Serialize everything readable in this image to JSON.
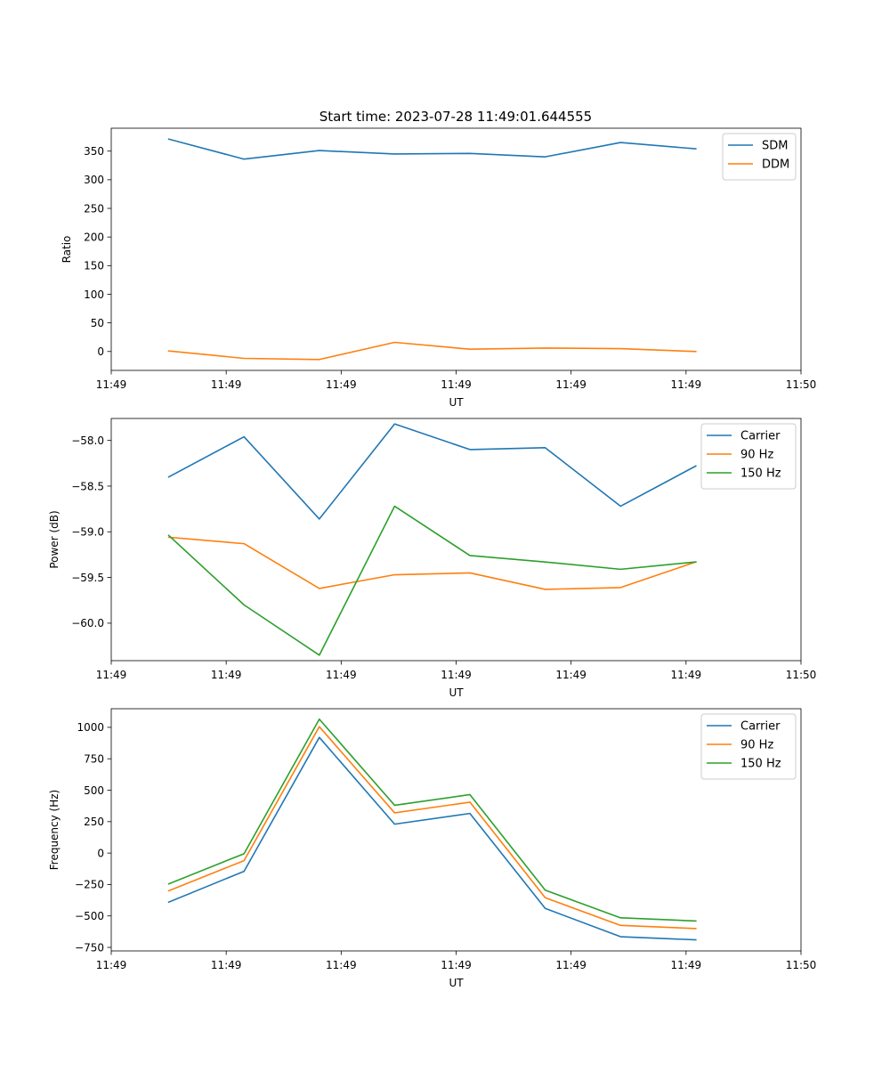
{
  "figure": {
    "title": "Start time: 2023-07-28 11:49:01.644555"
  },
  "chart_data": [
    {
      "type": "line",
      "title": "Start time: 2023-07-28 11:49:01.644555",
      "xlabel": "UT",
      "ylabel": "Ratio",
      "x": [
        0.5,
        1.155,
        1.81,
        2.465,
        3.12,
        3.775,
        4.43,
        5.085
      ],
      "xlim": [
        0,
        6
      ],
      "xticks": [
        0,
        1,
        2,
        3,
        4,
        5,
        6
      ],
      "xtick_labels": [
        "11:49",
        "11:49",
        "11:49",
        "11:49",
        "11:49",
        "11:49",
        "11:50"
      ],
      "ylim": [
        -33,
        390
      ],
      "yticks": [
        0,
        50,
        100,
        150,
        200,
        250,
        300,
        350
      ],
      "ytick_labels": [
        "0",
        "50",
        "100",
        "150",
        "200",
        "250",
        "300",
        "350"
      ],
      "grid": false,
      "legend": "top-right",
      "series": [
        {
          "name": "SDM",
          "color": "#1f77b4",
          "values": [
            371,
            336,
            351,
            345,
            346,
            340,
            365,
            354
          ]
        },
        {
          "name": "DDM",
          "color": "#ff7f0e",
          "values": [
            1,
            -12,
            -14,
            16,
            4,
            6,
            5,
            0
          ]
        }
      ]
    },
    {
      "type": "line",
      "title": "",
      "xlabel": "UT",
      "ylabel": "Power (dB)",
      "x": [
        0.5,
        1.155,
        1.81,
        2.465,
        3.12,
        3.775,
        4.43,
        5.085
      ],
      "xlim": [
        0,
        6
      ],
      "xticks": [
        0,
        1,
        2,
        3,
        4,
        5,
        6
      ],
      "xtick_labels": [
        "11:49",
        "11:49",
        "11:49",
        "11:49",
        "11:49",
        "11:49",
        "11:50"
      ],
      "ylim": [
        -60.41,
        -57.76
      ],
      "yticks": [
        -60.0,
        -59.5,
        -59.0,
        -58.5,
        -58.0
      ],
      "ytick_labels": [
        "−60.0",
        "−59.5",
        "−59.0",
        "−58.5",
        "−58.0"
      ],
      "grid": false,
      "legend": "top-right",
      "series": [
        {
          "name": "Carrier",
          "color": "#1f77b4",
          "values": [
            -58.4,
            -57.96,
            -58.86,
            -57.82,
            -58.1,
            -58.08,
            -58.72,
            -58.28
          ]
        },
        {
          "name": "90 Hz",
          "color": "#ff7f0e",
          "values": [
            -59.06,
            -59.13,
            -59.62,
            -59.47,
            -59.45,
            -59.63,
            -59.61,
            -59.33
          ]
        },
        {
          "name": "150 Hz",
          "color": "#2ca02c",
          "values": [
            -59.04,
            -59.8,
            -60.35,
            -58.72,
            -59.26,
            -59.33,
            -59.41,
            -59.33
          ]
        }
      ]
    },
    {
      "type": "line",
      "title": "",
      "xlabel": "UT",
      "ylabel": "Frequency (Hz)",
      "x": [
        0.5,
        1.155,
        1.81,
        2.465,
        3.12,
        3.775,
        4.43,
        5.085
      ],
      "xlim": [
        0,
        6
      ],
      "xticks": [
        0,
        1,
        2,
        3,
        4,
        5,
        6
      ],
      "xtick_labels": [
        "11:49",
        "11:49",
        "11:49",
        "11:49",
        "11:49",
        "11:49",
        "11:50"
      ],
      "ylim": [
        -778,
        1148
      ],
      "yticks": [
        -750,
        -500,
        -250,
        0,
        250,
        500,
        750,
        1000
      ],
      "ytick_labels": [
        "−750",
        "−500",
        "−250",
        "0",
        "250",
        "500",
        "750",
        "1000"
      ],
      "grid": false,
      "legend": "top-right",
      "series": [
        {
          "name": "Carrier",
          "color": "#1f77b4",
          "values": [
            -390,
            -145,
            920,
            230,
            315,
            -440,
            -665,
            -690
          ]
        },
        {
          "name": "90 Hz",
          "color": "#ff7f0e",
          "values": [
            -300,
            -60,
            1005,
            320,
            405,
            -355,
            -575,
            -600
          ]
        },
        {
          "name": "150 Hz",
          "color": "#2ca02c",
          "values": [
            -245,
            -5,
            1065,
            380,
            465,
            -295,
            -515,
            -540
          ]
        }
      ]
    }
  ]
}
